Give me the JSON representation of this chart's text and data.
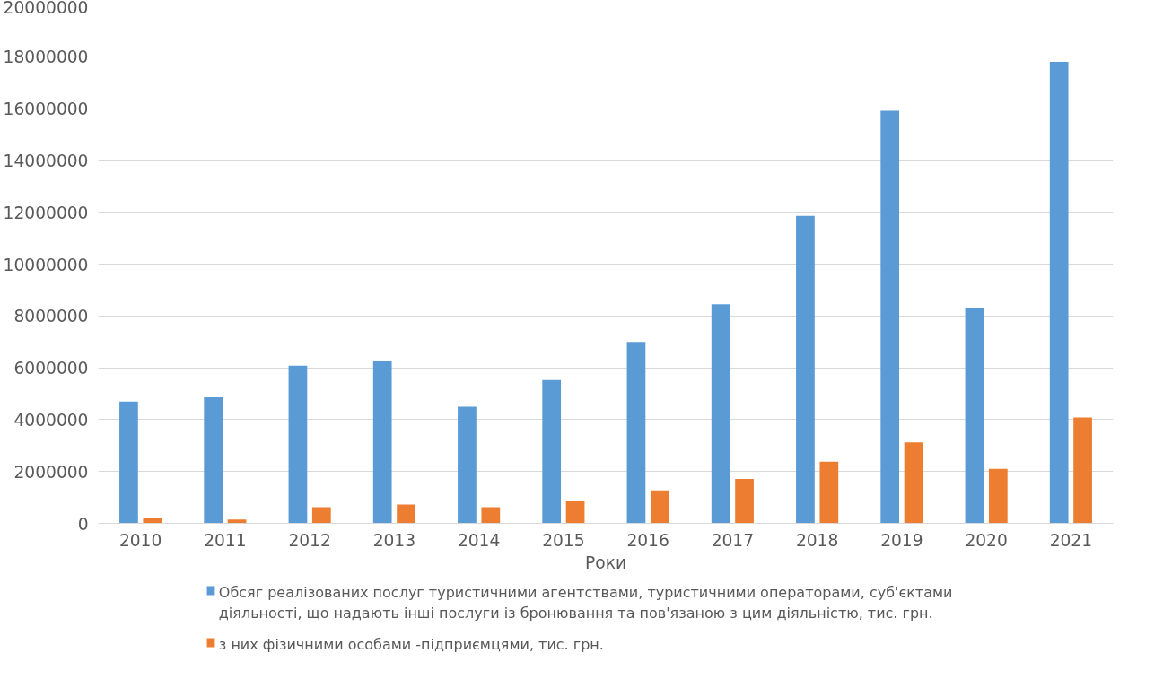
{
  "chart_data": {
    "type": "bar",
    "xlabel": "Роки",
    "categories": [
      "2010",
      "2011",
      "2012",
      "2013",
      "2014",
      "2015",
      "2016",
      "2017",
      "2018",
      "2019",
      "2020",
      "2021"
    ],
    "series": [
      {
        "name": "Обсяг реалізованих послуг туристичними агентствами, туристичними операторами, суб'єктами діяльності, що надають інші послуги із бронювання та пов'язаною з цим діяльністю, тис. грн.",
        "color": "#5b9bd5",
        "values": [
          4700000,
          4860000,
          6080000,
          6260000,
          4500000,
          5530000,
          7000000,
          8450000,
          11860000,
          15920000,
          8320000,
          17800000
        ]
      },
      {
        "name": "з них фізичними особами  -підприємцями, тис. грн.",
        "color": "#ed7d31",
        "values": [
          200000,
          150000,
          620000,
          730000,
          620000,
          880000,
          1270000,
          1710000,
          2380000,
          3120000,
          2100000,
          4080000
        ]
      }
    ],
    "ylim": [
      0,
      20000000
    ],
    "yticks": [
      0,
      2000000,
      4000000,
      6000000,
      8000000,
      10000000,
      12000000,
      14000000,
      16000000,
      18000000,
      20000000
    ],
    "grid": "y",
    "legend": "bottom"
  }
}
